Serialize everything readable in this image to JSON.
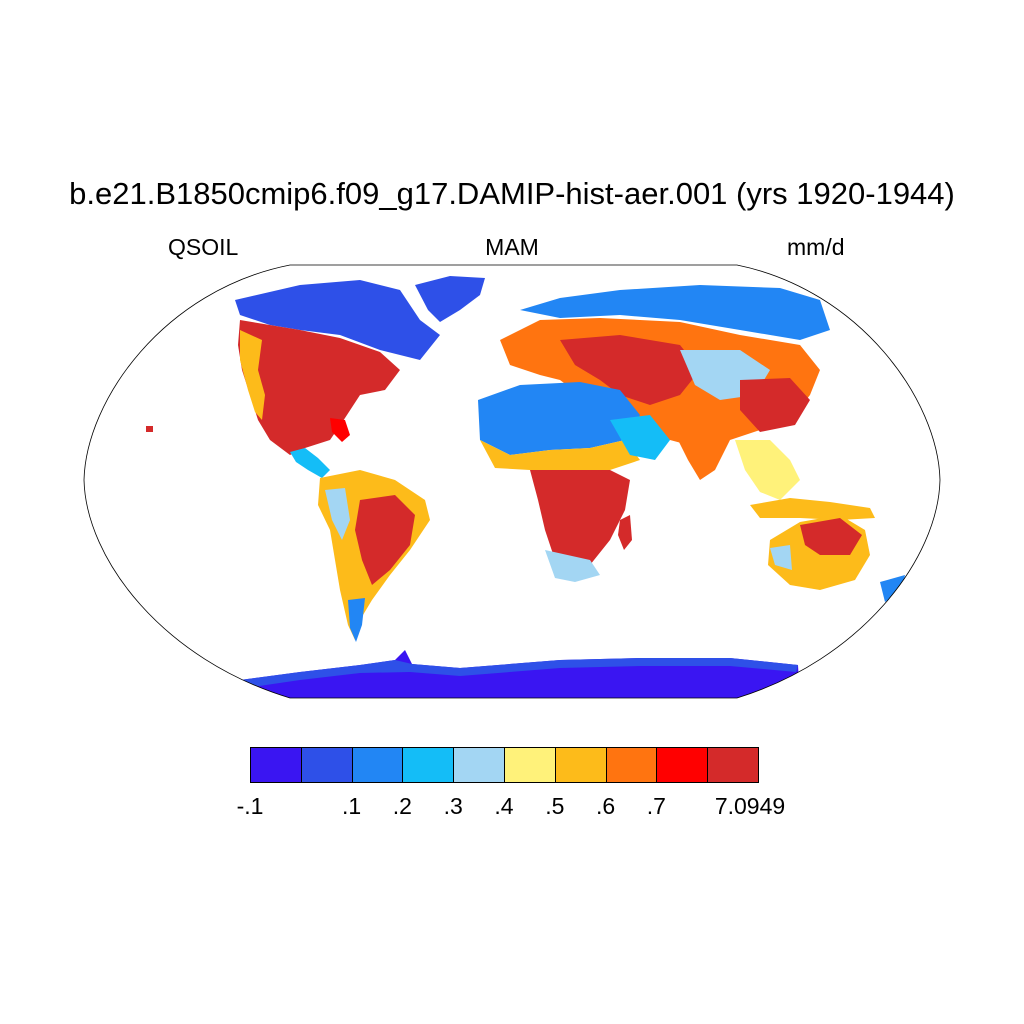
{
  "title": "b.e21.B1850cmip6.f09_g17.DAMIP-hist-aer.001 (yrs 1920-1944)",
  "variable": "QSOIL",
  "season": "MAM",
  "units": "mm/d",
  "colorbar": {
    "colors": [
      "#3a15f2",
      "#2e50e8",
      "#2286f4",
      "#14bdf7",
      "#a3d6f3",
      "#fff27a",
      "#fdbb1a",
      "#ff7410",
      "#ff0000",
      "#d42a2a"
    ],
    "labels": [
      "-.1",
      ".1",
      ".2",
      ".3",
      ".4",
      ".5",
      ".6",
      ".7",
      "7.0949"
    ]
  },
  "map": {
    "projection": "Robinson",
    "fill_colors": {
      "ocean": "#ffffff",
      "antarctica": "#3a15f2",
      "arctic": "#2e50e8",
      "very_low": "#2286f4",
      "low": "#14bdf7",
      "moderate": "#a3d6f3",
      "medium": "#fff27a",
      "high": "#fdbb1a",
      "very_high": "#d42a2a",
      "extreme": "#ff0000"
    }
  }
}
